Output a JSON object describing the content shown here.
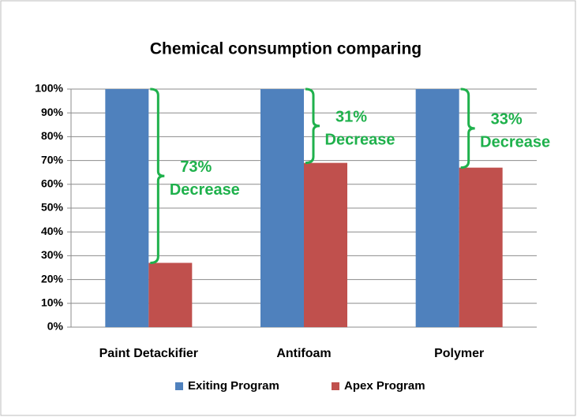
{
  "chart_data": {
    "type": "bar",
    "title": "Chemical consumption comparing",
    "categories": [
      "Paint Detackifier",
      "Antifoam",
      "Polymer"
    ],
    "series": [
      {
        "name": "Exiting Program",
        "color": "#4f81bd",
        "values": [
          100,
          100,
          100
        ]
      },
      {
        "name": "Apex Program",
        "color": "#c0504d",
        "values": [
          27,
          69,
          67
        ]
      }
    ],
    "ylim": [
      0,
      100
    ],
    "yticks": [
      {
        "value": 0,
        "label": "0%"
      },
      {
        "value": 10,
        "label": "10%"
      },
      {
        "value": 20,
        "label": "20%"
      },
      {
        "value": 30,
        "label": "30%"
      },
      {
        "value": 40,
        "label": "40%"
      },
      {
        "value": 50,
        "label": "50%"
      },
      {
        "value": 60,
        "label": "60%"
      },
      {
        "value": 70,
        "label": "70%"
      },
      {
        "value": 80,
        "label": "80%"
      },
      {
        "value": 90,
        "label": "90%"
      },
      {
        "value": 100,
        "label": "100%"
      }
    ],
    "grid": true,
    "legend": "bottom",
    "annotations": [
      {
        "lines": [
          "73%",
          "Decrease"
        ],
        "color": "#1fb14c"
      },
      {
        "lines": [
          "31%",
          "Decrease"
        ],
        "color": "#1fb14c"
      },
      {
        "lines": [
          "33%",
          "Decrease"
        ],
        "color": "#1fb14c"
      }
    ]
  }
}
